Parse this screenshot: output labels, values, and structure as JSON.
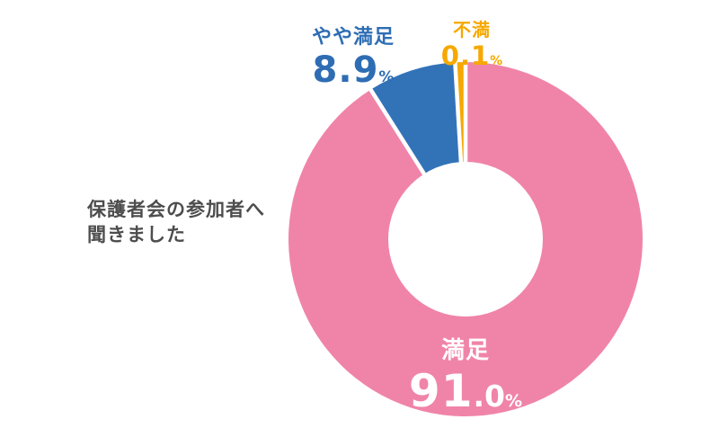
{
  "background": "#ffffff",
  "caption": {
    "line1": "保護者会の参加者へ",
    "line2": "聞きました",
    "color": "#4d4d4d"
  },
  "chart_data": {
    "type": "pie",
    "subtype": "donut",
    "title": "保護者会の参加者へ聞きました",
    "start_angle_deg": 0,
    "direction": "clockwise",
    "donut_hole_ratio": 0.44,
    "legend": "none",
    "categories": [
      "満足",
      "やや満足",
      "不満"
    ],
    "values": [
      91.0,
      8.9,
      0.1
    ],
    "slices": [
      {
        "label": "満足",
        "value": 91.0,
        "unit": "%",
        "color": "#f084a8",
        "text_color": "#ffffff",
        "label_position": "inside-bottom",
        "value_display": {
          "large": "91",
          "small": ".0",
          "percent": "%"
        }
      },
      {
        "label": "やや満足",
        "value": 8.9,
        "unit": "%",
        "color": "#3273b8",
        "text_color": "#2e6db4",
        "label_position": "outside-top-left",
        "value_display": {
          "large": "8.9",
          "small": "",
          "percent": "%"
        }
      },
      {
        "label": "不満",
        "value": 0.1,
        "unit": "%",
        "color": "#f6a800",
        "text_color": "#f6a800",
        "label_position": "outside-top",
        "value_display": {
          "large": "0.1",
          "small": "",
          "percent": "%"
        }
      }
    ]
  }
}
